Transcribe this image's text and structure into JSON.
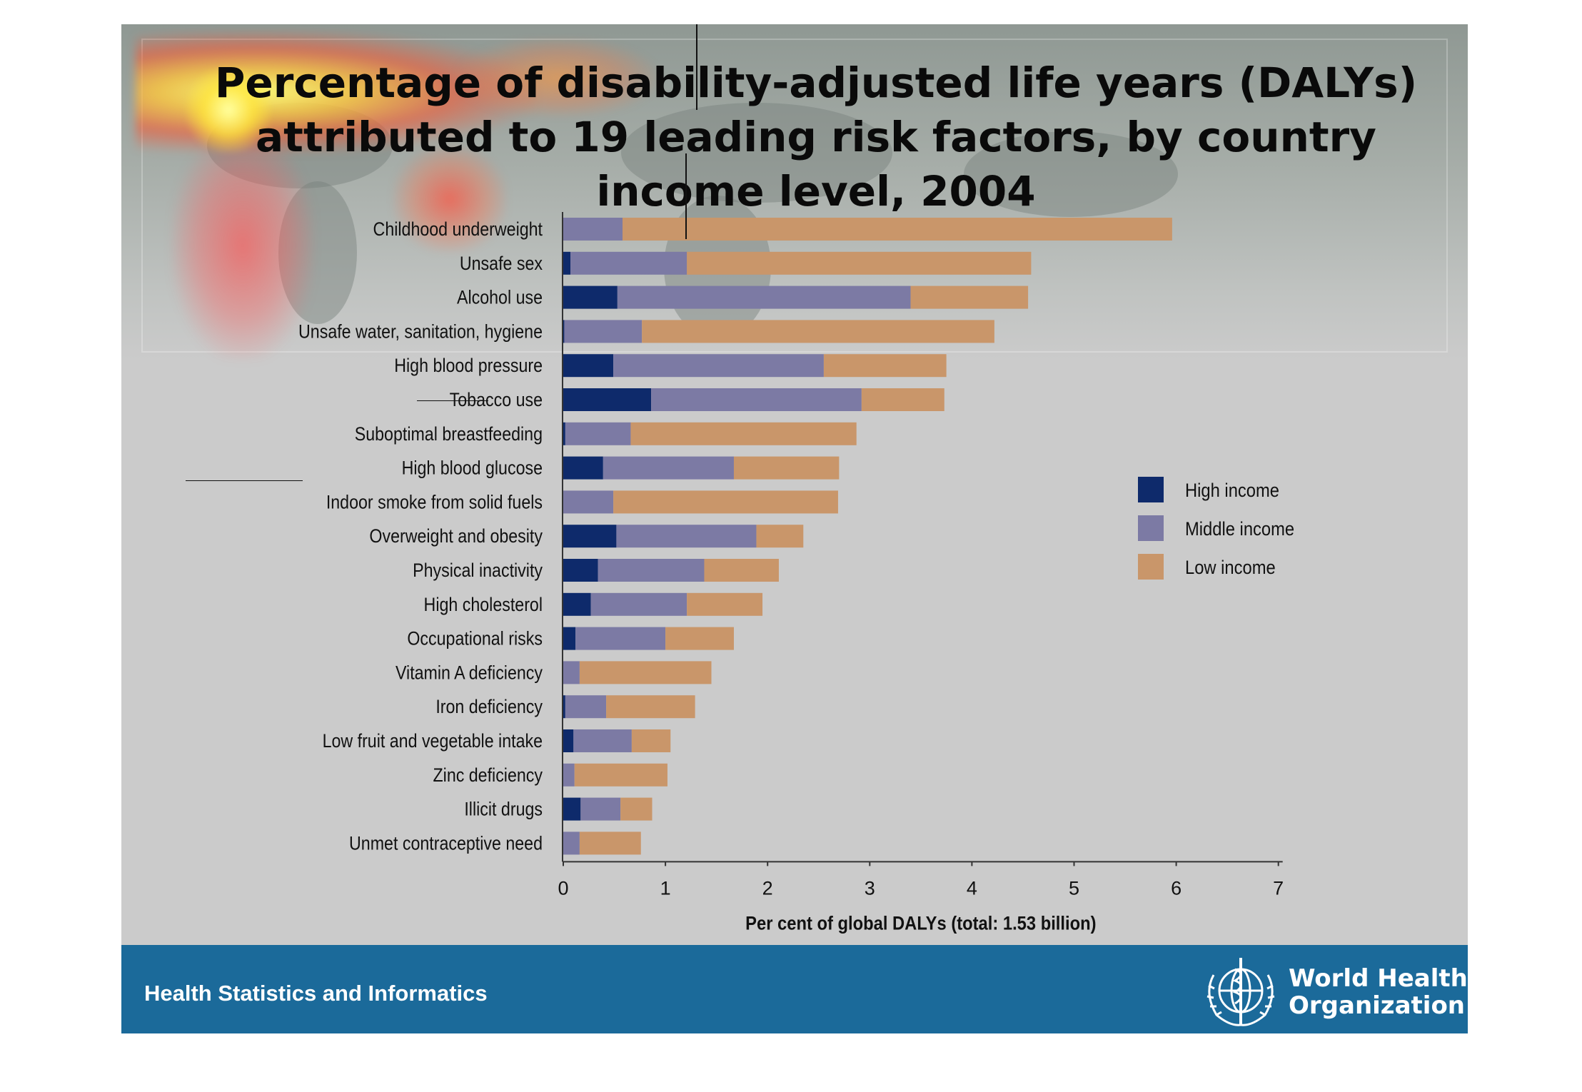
{
  "chart_data": {
    "type": "bar",
    "orientation": "horizontal",
    "stacked": true,
    "title": "Percentage of disability-adjusted life years (DALYs) attributed to 19 leading risk factors, by country income level, 2004",
    "xlabel": "Per cent of global DALYs (total: 1.53 billion)",
    "ylabel": "",
    "xlim": [
      0,
      7
    ],
    "xticks": [
      "0",
      "1",
      "2",
      "3",
      "4",
      "5",
      "6",
      "7"
    ],
    "legend_position": "right",
    "categories": [
      "Childhood underweight",
      "Unsafe sex",
      "Alcohol use",
      "Unsafe water, sanitation, hygiene",
      "High blood pressure",
      "Tobacco use",
      "Suboptimal breastfeeding",
      "High blood glucose",
      "Indoor smoke from solid fuels",
      "Overweight and obesity",
      "Physical inactivity",
      "High cholesterol",
      "Occupational risks",
      "Vitamin A deficiency",
      "Iron deficiency",
      "Low fruit and vegetable intake",
      "Zinc deficiency",
      "Illicit drugs",
      "Unmet contraceptive need"
    ],
    "series": [
      {
        "name": "High income",
        "color": "#0e2a6b",
        "values": [
          0.0,
          0.07,
          0.53,
          0.01,
          0.49,
          0.86,
          0.02,
          0.39,
          0.0,
          0.52,
          0.34,
          0.27,
          0.12,
          0.0,
          0.02,
          0.1,
          0.0,
          0.17,
          0.0
        ]
      },
      {
        "name": "Middle income",
        "color": "#7c7aa4",
        "values": [
          0.58,
          1.14,
          2.87,
          0.76,
          2.06,
          2.06,
          0.64,
          1.28,
          0.49,
          1.37,
          1.04,
          0.94,
          0.88,
          0.16,
          0.4,
          0.57,
          0.11,
          0.39,
          0.16
        ]
      },
      {
        "name": "Low income",
        "color": "#c9966a",
        "values": [
          5.38,
          3.37,
          1.15,
          3.45,
          1.2,
          0.81,
          2.21,
          1.03,
          2.2,
          0.46,
          0.73,
          0.74,
          0.67,
          1.29,
          0.87,
          0.38,
          0.91,
          0.31,
          0.6
        ]
      }
    ]
  },
  "footer": {
    "unit_name": "Health Statistics and Informatics",
    "org_line1": "World Health",
    "org_line2": "Organization"
  }
}
